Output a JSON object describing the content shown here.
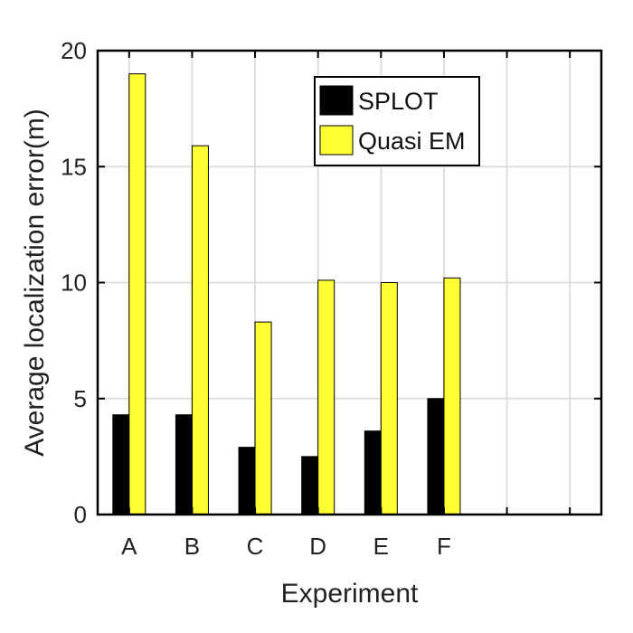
{
  "chart_data": {
    "type": "bar",
    "title": "",
    "xlabel": "Experiment",
    "ylabel": "Average localization error(m)",
    "categories": [
      "A",
      "B",
      "C",
      "D",
      "E",
      "F"
    ],
    "x_extent": [
      0.5,
      8.5
    ],
    "ylim": [
      0,
      20
    ],
    "yticks": [
      0,
      5,
      10,
      15,
      20
    ],
    "grid": true,
    "legend_position": "top-center",
    "series": [
      {
        "name": "SPLOT",
        "color": "#000000",
        "values": [
          4.3,
          4.3,
          2.9,
          2.5,
          3.6,
          5.0
        ]
      },
      {
        "name": "Quasi EM",
        "color": "#ffff33",
        "values": [
          19.0,
          15.9,
          8.3,
          10.1,
          10.0,
          10.2
        ]
      }
    ]
  }
}
